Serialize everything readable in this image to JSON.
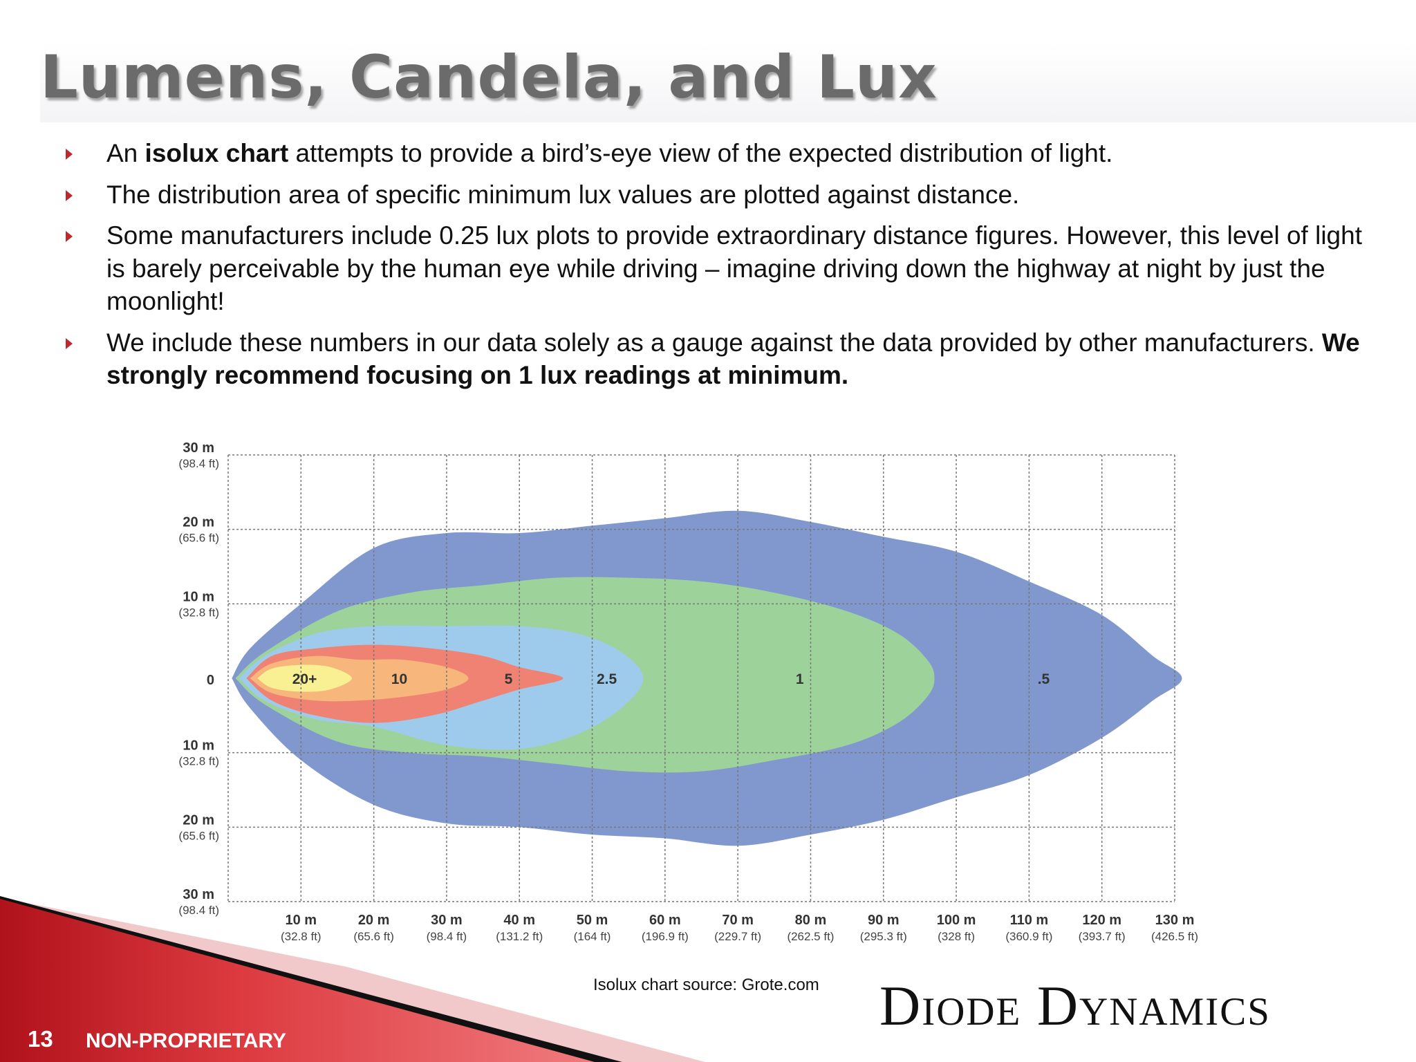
{
  "slide": {
    "title": "Lumens, Candela, and Lux",
    "bullets": [
      {
        "before": "An ",
        "bold": "isolux chart",
        "after": " attempts to provide a bird’s-eye view of the expected distribution of light."
      },
      {
        "before": "The distribution area of specific minimum lux values are plotted against distance.",
        "bold": "",
        "after": ""
      },
      {
        "before": "Some manufacturers include 0.25 lux plots to provide extraordinary distance figures. However, this level of light is barely perceivable by the human eye while driving – imagine driving down the highway at night by just the moonlight!",
        "bold": "",
        "after": ""
      },
      {
        "before": "We include these numbers in our data solely as a gauge against the data provided by other manufacturers. ",
        "bold": "We strongly recommend focusing on 1 lux readings at minimum.",
        "after": ""
      }
    ],
    "source": "Isolux chart source: Grote.com",
    "logo": "Diode Dynamics",
    "page_number": "13",
    "footer_label": "NON-PROPRIETARY",
    "colors": {
      "accent": "#c0282d",
      "title": "#6b6b6b"
    }
  },
  "chart_data": {
    "type": "area",
    "title": "",
    "x_ticks": [
      {
        "v": 10,
        "label": "10 m",
        "sub": "(32.8 ft)"
      },
      {
        "v": 20,
        "label": "20 m",
        "sub": "(65.6 ft)"
      },
      {
        "v": 30,
        "label": "30 m",
        "sub": "(98.4 ft)"
      },
      {
        "v": 40,
        "label": "40 m",
        "sub": "(131.2 ft)"
      },
      {
        "v": 50,
        "label": "50 m",
        "sub": "(164 ft)"
      },
      {
        "v": 60,
        "label": "60 m",
        "sub": "(196.9 ft)"
      },
      {
        "v": 70,
        "label": "70 m",
        "sub": "(229.7 ft)"
      },
      {
        "v": 80,
        "label": "80 m",
        "sub": "(262.5 ft)"
      },
      {
        "v": 90,
        "label": "90 m",
        "sub": "(295.3 ft)"
      },
      {
        "v": 100,
        "label": "100 m",
        "sub": "(328 ft)"
      },
      {
        "v": 110,
        "label": "110 m",
        "sub": "(360.9 ft)"
      },
      {
        "v": 120,
        "label": "120 m",
        "sub": "(393.7 ft)"
      },
      {
        "v": 130,
        "label": "130 m",
        "sub": "(426.5 ft)"
      }
    ],
    "y_ticks": [
      {
        "v": 30,
        "label": "30 m",
        "sub": "(98.4 ft)"
      },
      {
        "v": 20,
        "label": "20 m",
        "sub": "(65.6 ft)"
      },
      {
        "v": 10,
        "label": "10 m",
        "sub": "(32.8 ft)"
      },
      {
        "v": 0,
        "label": "0",
        "sub": ""
      },
      {
        "v": -10,
        "label": "10 m",
        "sub": "(32.8 ft)"
      },
      {
        "v": -20,
        "label": "20 m",
        "sub": "(65.6 ft)"
      },
      {
        "v": -30,
        "label": "30 m",
        "sub": "(98.4 ft)"
      }
    ],
    "xlim": [
      0,
      130
    ],
    "ylim": [
      -30,
      30
    ],
    "grid": true,
    "series": [
      {
        "name": ".5",
        "color": "#8198cf",
        "label_x": 112,
        "upper": [
          [
            0.5,
            0
          ],
          [
            3,
            4
          ],
          [
            10,
            10
          ],
          [
            20,
            17.5
          ],
          [
            30,
            19.5
          ],
          [
            40,
            19.5
          ],
          [
            50,
            20.5
          ],
          [
            60,
            21.5
          ],
          [
            70,
            22.5
          ],
          [
            80,
            21
          ],
          [
            90,
            19
          ],
          [
            100,
            17
          ],
          [
            110,
            13
          ],
          [
            120,
            8.5
          ],
          [
            127,
            3
          ],
          [
            131,
            0
          ]
        ],
        "lower": [
          [
            0.5,
            0
          ],
          [
            3,
            -4
          ],
          [
            10,
            -11
          ],
          [
            20,
            -17
          ],
          [
            30,
            -19.5
          ],
          [
            40,
            -20
          ],
          [
            50,
            -21
          ],
          [
            60,
            -21.5
          ],
          [
            70,
            -22.5
          ],
          [
            80,
            -21
          ],
          [
            90,
            -19
          ],
          [
            100,
            -16
          ],
          [
            110,
            -13
          ],
          [
            120,
            -8
          ],
          [
            127,
            -3
          ],
          [
            131,
            0
          ]
        ]
      },
      {
        "name": "1",
        "color": "#9dd39b",
        "label_x": 78.5,
        "upper": [
          [
            1,
            0
          ],
          [
            5,
            3.5
          ],
          [
            15,
            9
          ],
          [
            25,
            11.5
          ],
          [
            35,
            12.5
          ],
          [
            45,
            13.5
          ],
          [
            55,
            13.5
          ],
          [
            65,
            13
          ],
          [
            75,
            11.5
          ],
          [
            85,
            9
          ],
          [
            92,
            6
          ],
          [
            96,
            2.5
          ],
          [
            97,
            0
          ]
        ],
        "lower": [
          [
            1,
            0
          ],
          [
            5,
            -3.5
          ],
          [
            15,
            -8.5
          ],
          [
            25,
            -10
          ],
          [
            35,
            -10.5
          ],
          [
            45,
            -11.5
          ],
          [
            55,
            -12.5
          ],
          [
            65,
            -12.5
          ],
          [
            75,
            -11
          ],
          [
            85,
            -9
          ],
          [
            92,
            -6
          ],
          [
            96,
            -2.5
          ],
          [
            97,
            0
          ]
        ]
      },
      {
        "name": "2.5",
        "color": "#9ecbeb",
        "label_x": 52,
        "upper": [
          [
            1.5,
            0
          ],
          [
            5,
            3
          ],
          [
            12,
            6
          ],
          [
            20,
            7
          ],
          [
            30,
            7
          ],
          [
            40,
            7
          ],
          [
            48,
            6
          ],
          [
            54,
            3.5
          ],
          [
            57,
            0
          ]
        ],
        "lower": [
          [
            1.5,
            0
          ],
          [
            5,
            -3
          ],
          [
            12,
            -5.5
          ],
          [
            20,
            -6.5
          ],
          [
            30,
            -9
          ],
          [
            40,
            -9.5
          ],
          [
            48,
            -7.5
          ],
          [
            54,
            -4
          ],
          [
            57,
            0
          ]
        ]
      },
      {
        "name": "5",
        "color": "#ef8272",
        "label_x": 38.5,
        "upper": [
          [
            2.5,
            0
          ],
          [
            6,
            3
          ],
          [
            12,
            4
          ],
          [
            20,
            4.5
          ],
          [
            28,
            4
          ],
          [
            35,
            3
          ],
          [
            40,
            1.5
          ],
          [
            46,
            0
          ]
        ],
        "lower": [
          [
            2.5,
            0
          ],
          [
            6,
            -3
          ],
          [
            12,
            -5
          ],
          [
            20,
            -6
          ],
          [
            28,
            -5
          ],
          [
            35,
            -3
          ],
          [
            40,
            -1.5
          ],
          [
            46,
            0
          ]
        ]
      },
      {
        "name": "10",
        "color": "#f7b67b",
        "label_x": 23.5,
        "upper": [
          [
            3,
            0
          ],
          [
            6,
            2
          ],
          [
            12,
            3
          ],
          [
            18,
            2.5
          ],
          [
            24,
            2.5
          ],
          [
            30,
            1.5
          ],
          [
            33,
            0
          ]
        ],
        "lower": [
          [
            3,
            0
          ],
          [
            6,
            -2
          ],
          [
            12,
            -3
          ],
          [
            18,
            -3
          ],
          [
            24,
            -2.5
          ],
          [
            30,
            -1.5
          ],
          [
            33,
            0
          ]
        ]
      },
      {
        "name": "20+",
        "color": "#f9ef93",
        "label_x": 10.5,
        "upper": [
          [
            4,
            0
          ],
          [
            6,
            1.3
          ],
          [
            10,
            1.8
          ],
          [
            14,
            1.5
          ],
          [
            17,
            0
          ]
        ],
        "lower": [
          [
            4,
            0
          ],
          [
            6,
            -1.3
          ],
          [
            10,
            -1.8
          ],
          [
            14,
            -1.5
          ],
          [
            17,
            0
          ]
        ]
      }
    ]
  }
}
